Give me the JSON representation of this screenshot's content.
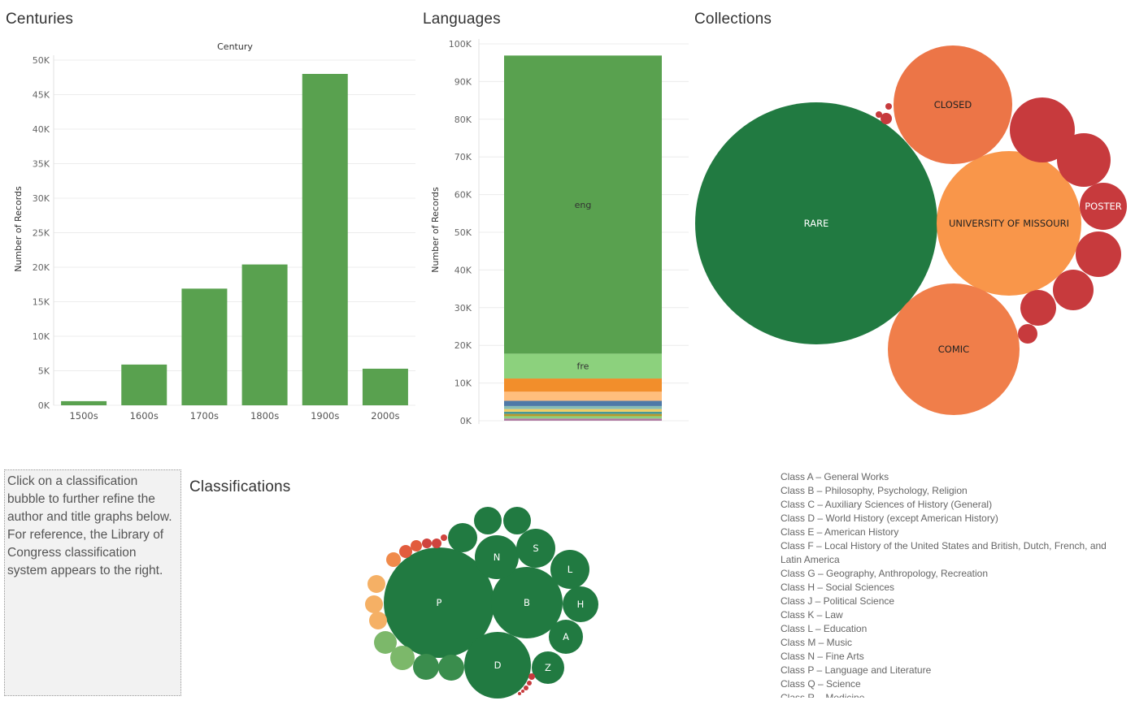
{
  "centuries": {
    "title": "Centuries",
    "chart_data": {
      "type": "bar",
      "title": "Century",
      "xlabel": "",
      "ylabel": "Number of Records",
      "categories": [
        "1500s",
        "1600s",
        "1700s",
        "1800s",
        "1900s",
        "2000s"
      ],
      "values": [
        600,
        5900,
        16900,
        20400,
        48000,
        5300
      ],
      "ylim": [
        0,
        50000
      ],
      "yticks": [
        0,
        5000,
        10000,
        15000,
        20000,
        25000,
        30000,
        35000,
        40000,
        45000,
        50000
      ],
      "ytick_labels": [
        "0K",
        "5K",
        "10K",
        "15K",
        "20K",
        "25K",
        "30K",
        "35K",
        "40K",
        "45K",
        "50K"
      ],
      "color": "#59a14f",
      "grid": true
    }
  },
  "languages": {
    "title": "Languages",
    "chart_data": {
      "type": "bar",
      "stacked": true,
      "xlabel": "",
      "ylabel": "Number of Records",
      "ylim": [
        0,
        100000
      ],
      "yticks": [
        0,
        10000,
        20000,
        30000,
        40000,
        50000,
        60000,
        70000,
        80000,
        90000,
        100000
      ],
      "ytick_labels": [
        "0K",
        "10K",
        "20K",
        "30K",
        "40K",
        "50K",
        "60K",
        "70K",
        "80K",
        "90K",
        "100K"
      ],
      "grid": true,
      "series": [
        {
          "name": "",
          "value": 600,
          "color": "#b07aa1"
        },
        {
          "name": "",
          "value": 600,
          "color": "#8cd17d"
        },
        {
          "name": "",
          "value": 600,
          "color": "#b6992d"
        },
        {
          "name": "",
          "value": 600,
          "color": "#499894"
        },
        {
          "name": "",
          "value": 700,
          "color": "#f1ce63"
        },
        {
          "name": "",
          "value": 800,
          "color": "#86bcb6"
        },
        {
          "name": "",
          "value": 1400,
          "color": "#4e79a7"
        },
        {
          "name": "",
          "value": 2400,
          "color": "#ffbe7d"
        },
        {
          "name": "",
          "value": 3500,
          "color": "#f28e2b"
        },
        {
          "name": "fre",
          "value": 6600,
          "color": "#8cd17d"
        },
        {
          "name": "eng",
          "value": 79100,
          "color": "#59a14f"
        }
      ]
    }
  },
  "collections": {
    "title": "Collections",
    "bubbles": [
      {
        "label": "RARE",
        "color": "#217a41"
      },
      {
        "label": "UNIVERSITY OF MISSOURI",
        "color": "#f9964a"
      },
      {
        "label": "CLOSED",
        "color": "#ec7547"
      },
      {
        "label": "COMIC",
        "color": "#f07e4a"
      },
      {
        "label": "POSTER",
        "color": "#c73a3d"
      },
      {
        "label": "",
        "color": "#c73a3d"
      },
      {
        "label": "",
        "color": "#c73a3d"
      },
      {
        "label": "",
        "color": "#c73a3d"
      },
      {
        "label": "",
        "color": "#c73a3d"
      },
      {
        "label": "",
        "color": "#c73a3d"
      },
      {
        "label": "",
        "color": "#c73a3d"
      },
      {
        "label": "",
        "color": "#c73a3d"
      },
      {
        "label": "",
        "color": "#c73a3d"
      },
      {
        "label": "",
        "color": "#c73a3d"
      }
    ]
  },
  "note": {
    "text": "Click on a classification bubble to further refine the author and title graphs below. For reference, the Library of Congress classification system appears to the right."
  },
  "classifications": {
    "title": "Classifications",
    "bubbles": [
      {
        "label": "P",
        "color": "#217a41"
      },
      {
        "label": "B",
        "color": "#217a41"
      },
      {
        "label": "D",
        "color": "#217a41"
      },
      {
        "label": "N",
        "color": "#217a41"
      },
      {
        "label": "S",
        "color": "#217a41"
      },
      {
        "label": "L",
        "color": "#217a41"
      },
      {
        "label": "H",
        "color": "#217a41"
      },
      {
        "label": "A",
        "color": "#217a41"
      },
      {
        "label": "Z",
        "color": "#217a41"
      },
      {
        "label": "",
        "color": "#217a41"
      },
      {
        "label": "",
        "color": "#217a41"
      },
      {
        "label": "",
        "color": "#217a41"
      },
      {
        "label": "",
        "color": "#3a8d4d"
      },
      {
        "label": "",
        "color": "#3a8d4d"
      },
      {
        "label": "",
        "color": "#7cb86a"
      },
      {
        "label": "",
        "color": "#7cb86a"
      },
      {
        "label": "",
        "color": "#f5b065"
      },
      {
        "label": "",
        "color": "#f5b065"
      },
      {
        "label": "",
        "color": "#f5b065"
      },
      {
        "label": "",
        "color": "#f08a4b"
      },
      {
        "label": "",
        "color": "#e25c3d"
      },
      {
        "label": "",
        "color": "#e25c3d"
      },
      {
        "label": "",
        "color": "#d0443e"
      },
      {
        "label": "",
        "color": "#d0443e"
      },
      {
        "label": "",
        "color": "#d0443e"
      },
      {
        "label": "",
        "color": "#c73a3d"
      },
      {
        "label": "",
        "color": "#c73a3d"
      },
      {
        "label": "",
        "color": "#c73a3d"
      },
      {
        "label": "",
        "color": "#c73a3d"
      },
      {
        "label": "",
        "color": "#c73a3d"
      }
    ]
  },
  "loc_classes": [
    "Class A – General Works",
    "Class B – Philosophy, Psychology, Religion",
    "Class C – Auxiliary Sciences of History (General)",
    "Class D – World History (except American History)",
    "Class E – American History",
    "Class F – Local History of the United States and British, Dutch, French, and Latin America",
    "Class G – Geography, Anthropology, Recreation",
    "Class H – Social Sciences",
    "Class J – Political Science",
    "Class K – Law",
    "Class L – Education",
    "Class M – Music",
    "Class N – Fine Arts",
    "Class P – Language and Literature",
    "Class Q – Science",
    "Class R – Medicine"
  ]
}
